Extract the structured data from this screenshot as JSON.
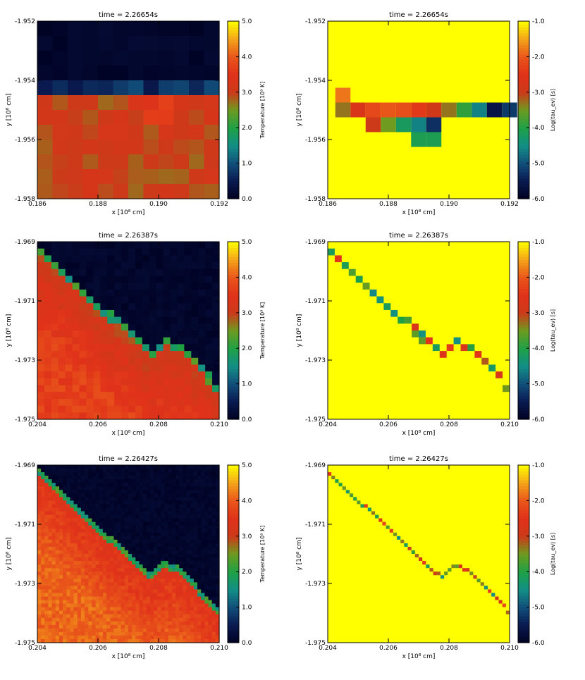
{
  "colors": {
    "temperature_scale": [
      "#000020",
      "#0a1a50",
      "#114f7a",
      "#138f86",
      "#1fa045",
      "#6e9b20",
      "#cc3a1a",
      "#e0321a",
      "#e9561a",
      "#f4a41a",
      "#ffff00"
    ],
    "tau_scale": [
      "#000020",
      "#0a1a50",
      "#114f7a",
      "#138f86",
      "#1fa045",
      "#6e9b20",
      "#cc3a1a",
      "#e0321a",
      "#e9561a",
      "#f4a41a",
      "#ffff00"
    ]
  },
  "chart_data": [
    {
      "type": "heatmap",
      "panel": "row1-left",
      "title": "time = 2.26654s",
      "xlabel": "x [10⁸ cm]",
      "ylabel": "y [10⁸ cm]",
      "xlim": [
        0.186,
        0.192
      ],
      "ylim": [
        -1.958,
        -1.952
      ],
      "xticks": [
        "0.186",
        "0.188",
        "0.190",
        "0.192"
      ],
      "yticks": [
        "-1.958",
        "-1.956",
        "-1.954",
        "-1.952"
      ],
      "colorbar": {
        "label": "Temperature [10⁹ K]",
        "range": [
          0.0,
          5.0
        ],
        "ticks": [
          "0.0",
          "1.0",
          "2.0",
          "3.0",
          "4.0",
          "5.0"
        ]
      },
      "field": "temperature",
      "front": {
        "form": "flat",
        "y_front": -1.9547,
        "hot_value": 3.0
      }
    },
    {
      "type": "heatmap",
      "panel": "row1-right",
      "title": "time = 2.26654s",
      "xlabel": "x [10⁸ cm]",
      "ylabel": "y [10⁸ cm]",
      "xlim": [
        0.186,
        0.192
      ],
      "ylim": [
        -1.958,
        -1.952
      ],
      "xticks": [
        "0.186",
        "0.188",
        "0.190",
        "0.192"
      ],
      "yticks": [
        "-1.958",
        "-1.956",
        "-1.954",
        "-1.952"
      ],
      "colorbar": {
        "label": "Log(tau_ev) [s]",
        "range": [
          -6.0,
          -1.0
        ],
        "ticks": [
          "-6.0",
          "-5.0",
          "-4.0",
          "-3.0",
          "-2.0",
          "-1.0"
        ]
      },
      "field": "log_tau",
      "background_value": -1.0,
      "cells": [
        [
          0.1865,
          -1.9545,
          -1.8
        ],
        [
          0.1865,
          -1.955,
          -3.3
        ],
        [
          0.187,
          -1.955,
          -2.7
        ],
        [
          0.1875,
          -1.955,
          -2.2
        ],
        [
          0.188,
          -1.955,
          -2.0
        ],
        [
          0.1885,
          -1.955,
          -2.1
        ],
        [
          0.189,
          -1.955,
          -2.4
        ],
        [
          0.1895,
          -1.955,
          -2.9
        ],
        [
          0.19,
          -1.955,
          -3.3
        ],
        [
          0.1905,
          -1.955,
          -3.9
        ],
        [
          0.191,
          -1.955,
          -4.6
        ],
        [
          0.1915,
          -1.955,
          -5.6
        ],
        [
          0.192,
          -1.955,
          -5.2
        ],
        [
          0.1875,
          -1.9555,
          -3.0
        ],
        [
          0.188,
          -1.9555,
          -3.5
        ],
        [
          0.1885,
          -1.9555,
          -4.2
        ],
        [
          0.189,
          -1.9555,
          -4.6
        ],
        [
          0.1895,
          -1.9555,
          -5.3
        ],
        [
          0.189,
          -1.956,
          -4.1
        ],
        [
          0.1895,
          -1.956,
          -4.1
        ]
      ]
    },
    {
      "type": "heatmap",
      "panel": "row2-left",
      "title": "time = 2.26387s",
      "xlabel": "x [10⁸ cm]",
      "ylabel": "y [10⁸ cm]",
      "xlim": [
        0.204,
        0.21
      ],
      "ylim": [
        -1.975,
        -1.969
      ],
      "xticks": [
        "0.204",
        "0.206",
        "0.208",
        "0.210"
      ],
      "yticks": [
        "-1.975",
        "-1.973",
        "-1.971",
        "-1.969"
      ],
      "colorbar": {
        "label": "Temperature [10⁹ K]",
        "range": [
          0.0,
          5.0
        ],
        "ticks": [
          "0.0",
          "1.0",
          "2.0",
          "3.0",
          "4.0",
          "5.0"
        ]
      },
      "field": "temperature",
      "front": {
        "form": "shear",
        "hot_value": 3.4
      }
    },
    {
      "type": "heatmap",
      "panel": "row2-right",
      "title": "time = 2.26387s",
      "xlabel": "x [10⁸ cm]",
      "ylabel": "y [10⁸ cm]",
      "xlim": [
        0.204,
        0.21
      ],
      "ylim": [
        -1.975,
        -1.969
      ],
      "xticks": [
        "0.204",
        "0.206",
        "0.208",
        "0.210"
      ],
      "yticks": [
        "-1.975",
        "-1.973",
        "-1.971",
        "-1.969"
      ],
      "colorbar": {
        "label": "Log(tau_ev) [s]",
        "range": [
          -6.0,
          -1.0
        ],
        "ticks": [
          "-6.0",
          "-5.0",
          "-4.0",
          "-3.0",
          "-2.0",
          "-1.0"
        ]
      },
      "field": "log_tau",
      "background_value": -1.0,
      "front": {
        "form": "shear"
      }
    },
    {
      "type": "heatmap",
      "panel": "row3-left",
      "title": "time = 2.26427s",
      "xlabel": "x [10⁸ cm]",
      "ylabel": "y [10⁸ cm]",
      "xlim": [
        0.204,
        0.21
      ],
      "ylim": [
        -1.975,
        -1.969
      ],
      "xticks": [
        "0.204",
        "0.206",
        "0.208",
        "0.210"
      ],
      "yticks": [
        "-1.975",
        "-1.973",
        "-1.971",
        "-1.969"
      ],
      "colorbar": {
        "label": "Temperature [10⁹ K]",
        "range": [
          0.0,
          5.0
        ],
        "ticks": [
          "0.0",
          "1.0",
          "2.0",
          "3.0",
          "4.0",
          "5.0"
        ]
      },
      "field": "temperature",
      "front": {
        "form": "shear",
        "hot_value": 3.8
      }
    },
    {
      "type": "heatmap",
      "panel": "row3-right",
      "title": "time = 2.26427s",
      "xlabel": "x [10⁸ cm]",
      "ylabel": "y [10⁸ cm]",
      "xlim": [
        0.204,
        0.21
      ],
      "ylim": [
        -1.975,
        -1.969
      ],
      "xticks": [
        "0.204",
        "0.206",
        "0.208",
        "0.210"
      ],
      "yticks": [
        "-1.975",
        "-1.973",
        "-1.971",
        "-1.969"
      ],
      "colorbar": {
        "label": "Log(tau_ev) [s]",
        "range": [
          -6.0,
          -1.0
        ],
        "ticks": [
          "-6.0",
          "-5.0",
          "-4.0",
          "-3.0",
          "-2.0",
          "-1.0"
        ]
      },
      "field": "log_tau",
      "background_value": -1.0,
      "front": {
        "form": "shear"
      }
    }
  ]
}
